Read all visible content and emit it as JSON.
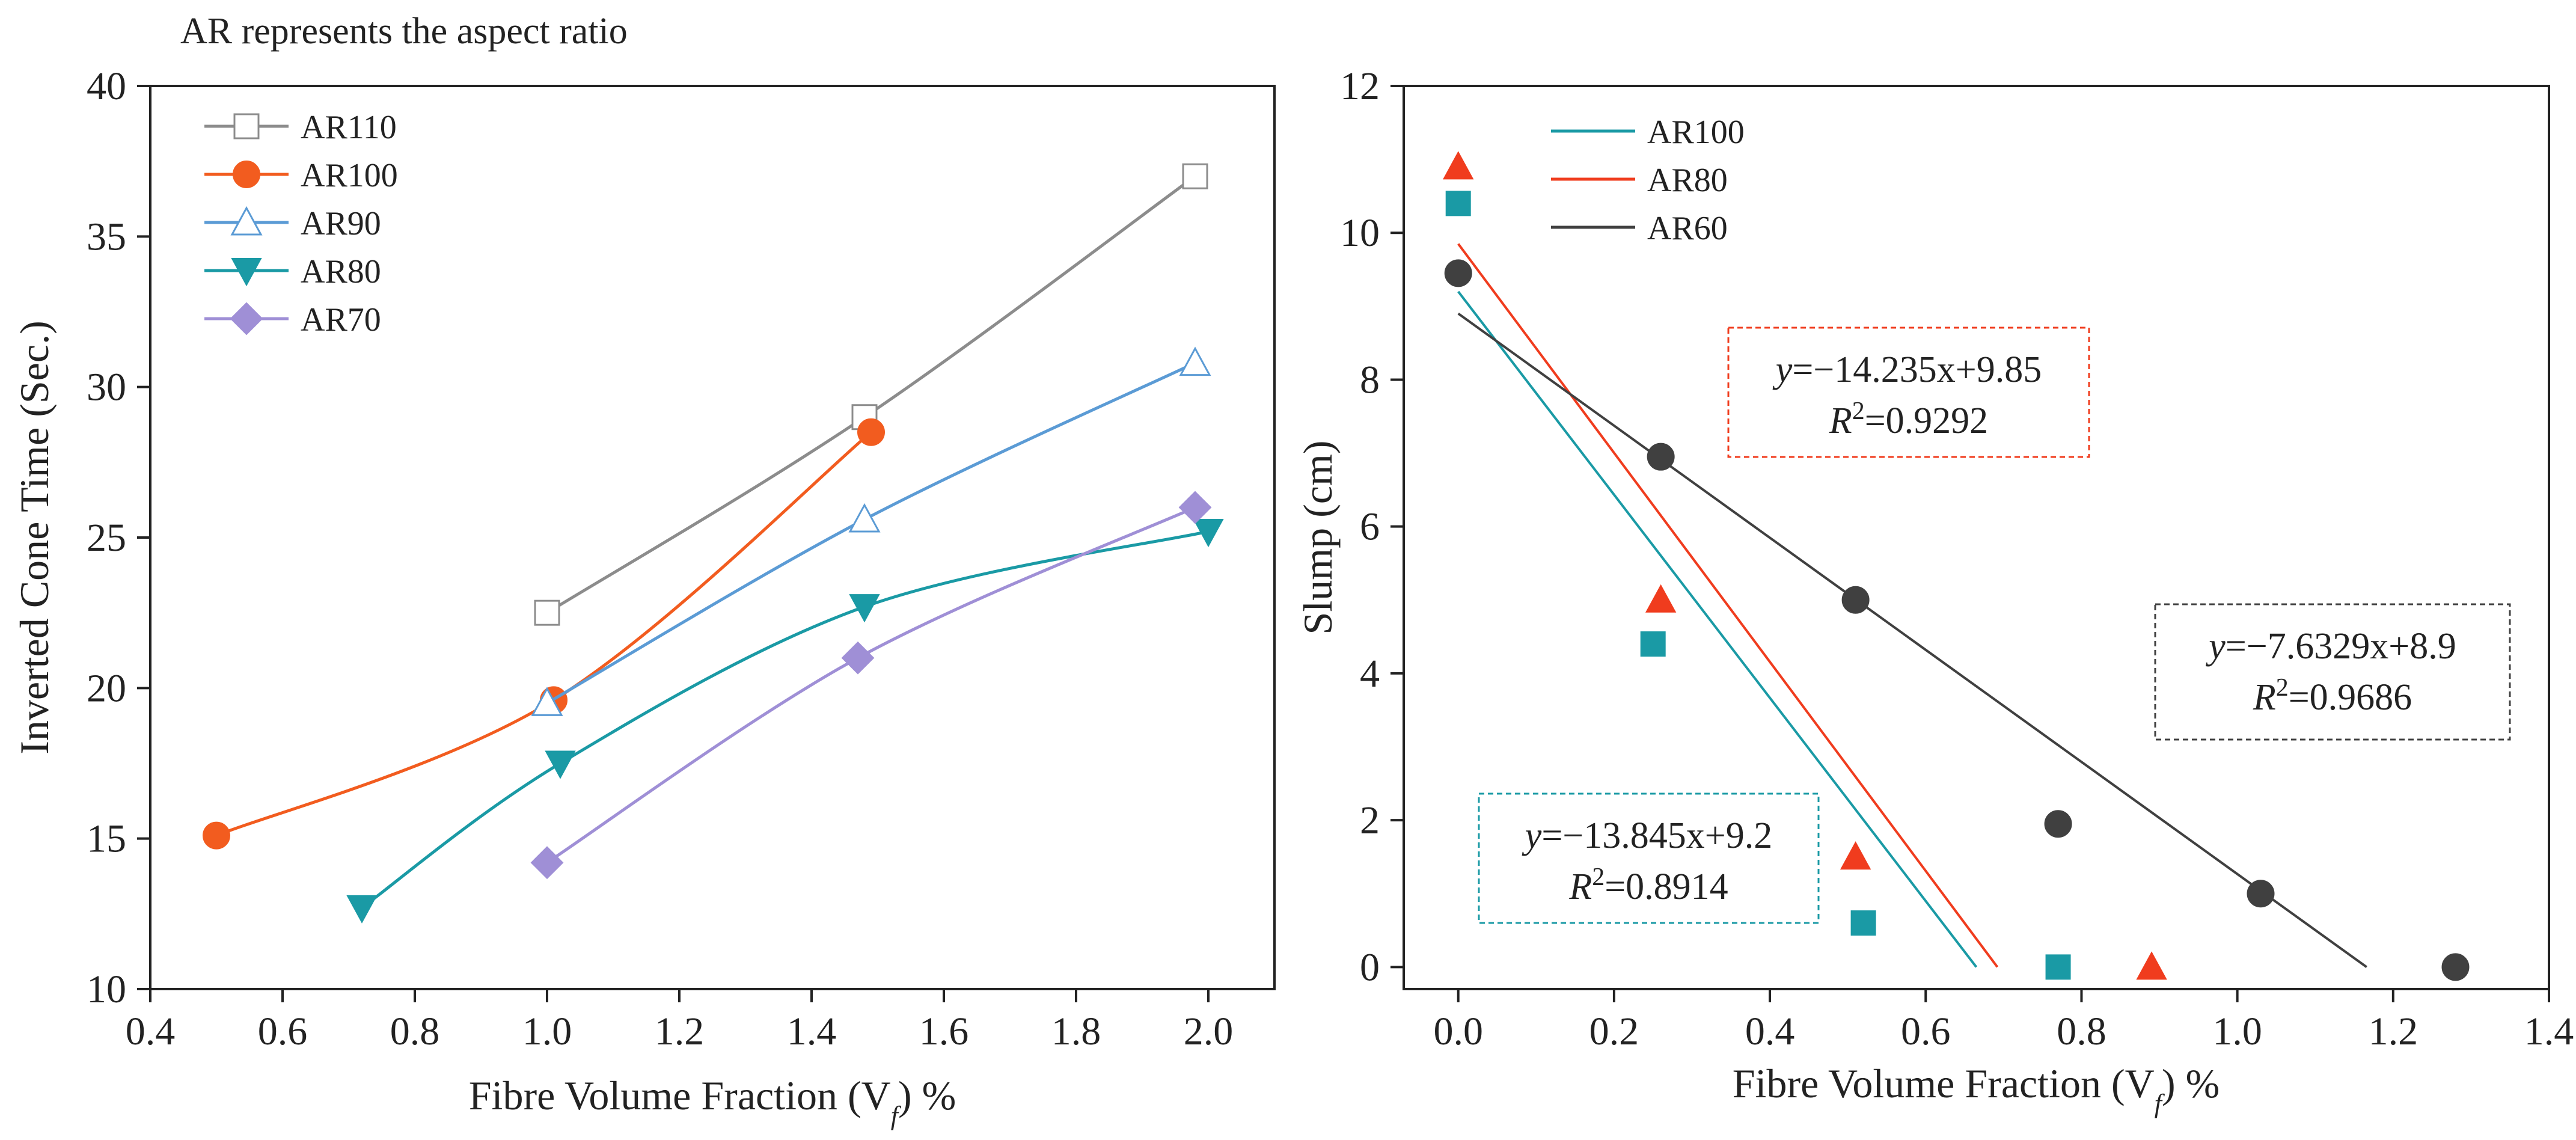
{
  "note": "AR represents the aspect ratio",
  "chart_data": [
    {
      "type": "line",
      "xlabel": "Fibre Volume Fraction (V",
      "xlabel_sub": "f",
      "xlabel_suffix": ") %",
      "ylabel": "Inverted Cone Time (Sec.)",
      "xlim": [
        0.4,
        2.1
      ],
      "ylim": [
        10,
        40
      ],
      "xticks": [
        "0.4",
        "0.6",
        "0.8",
        "1.0",
        "1.2",
        "1.4",
        "1.6",
        "1.8",
        "2.0"
      ],
      "yticks": [
        "10",
        "15",
        "20",
        "25",
        "30",
        "35",
        "40"
      ],
      "legend_position": "top-left",
      "series": [
        {
          "name": "AR110",
          "color": "#8c8c8c",
          "marker": "square-open",
          "x": [
            1.0,
            1.48,
            1.98
          ],
          "y": [
            22.5,
            29.0,
            37.0
          ]
        },
        {
          "name": "AR100",
          "color": "#f25c1f",
          "marker": "circle-filled",
          "x": [
            0.5,
            1.01,
            1.49
          ],
          "y": [
            15.1,
            19.6,
            28.5
          ]
        },
        {
          "name": "AR90",
          "color": "#5b9bd5",
          "marker": "triangle-open",
          "x": [
            1.0,
            1.48,
            1.98
          ],
          "y": [
            19.5,
            25.6,
            30.8
          ]
        },
        {
          "name": "AR80",
          "color": "#1a9aa5",
          "marker": "triangle-down-filled",
          "x": [
            0.72,
            1.02,
            1.48,
            2.0
          ],
          "y": [
            12.7,
            17.5,
            22.7,
            25.2
          ]
        },
        {
          "name": "AR70",
          "color": "#9f8fd6",
          "marker": "diamond-filled",
          "x": [
            1.0,
            1.47,
            1.98
          ],
          "y": [
            14.2,
            21.0,
            26.0
          ]
        }
      ]
    },
    {
      "type": "scatter",
      "xlabel": "Fibre Volume Fraction (V",
      "xlabel_sub": "f",
      "xlabel_suffix": ") %",
      "ylabel": "Slump (cm)",
      "xlim": [
        -0.07,
        1.4
      ],
      "ylim": [
        -0.3,
        12
      ],
      "xticks": [
        "0.0",
        "0.2",
        "0.4",
        "0.6",
        "0.8",
        "1.0",
        "1.2",
        "1.4"
      ],
      "yticks": [
        "0",
        "2",
        "4",
        "6",
        "8",
        "10",
        "12"
      ],
      "legend_position": "top-left",
      "series": [
        {
          "name": "AR100",
          "color": "#1a9aa5",
          "marker": "square-filled",
          "x": [
            0.0,
            0.25,
            0.52,
            0.77
          ],
          "y": [
            10.4,
            4.4,
            0.6,
            0.0
          ],
          "fit": {
            "x": [
              0.0,
              0.665
            ],
            "y": [
              9.2,
              0.0
            ]
          }
        },
        {
          "name": "AR80",
          "color": "#f03c1e",
          "marker": "triangle-filled",
          "x": [
            0.0,
            0.26,
            0.51,
            0.89
          ],
          "y": [
            10.9,
            5.0,
            1.5,
            0.0
          ],
          "fit": {
            "x": [
              0.0,
              0.692
            ],
            "y": [
              9.85,
              0.0
            ]
          }
        },
        {
          "name": "AR60",
          "color": "#404040",
          "marker": "circle-filled",
          "x": [
            0.0,
            0.26,
            0.51,
            0.77,
            1.03,
            1.28
          ],
          "y": [
            9.45,
            6.95,
            5.0,
            1.95,
            1.0,
            0.0
          ],
          "fit": {
            "x": [
              0.0,
              1.166
            ],
            "y": [
              8.9,
              0.0
            ]
          }
        }
      ],
      "equations": [
        {
          "id": "ar80",
          "color": "#f03c1e",
          "line1_y": "y",
          "line1_rest": "=−14.235x+9.85",
          "line2": "=0.9292"
        },
        {
          "id": "ar60",
          "color": "#404040",
          "line1_y": "y",
          "line1_rest": "=−7.6329x+8.9",
          "line2": "=0.9686"
        },
        {
          "id": "ar100",
          "color": "#1a9aa5",
          "line1_y": "y",
          "line1_rest": "=−13.845x+9.2",
          "line2": "=0.8914"
        }
      ]
    }
  ]
}
